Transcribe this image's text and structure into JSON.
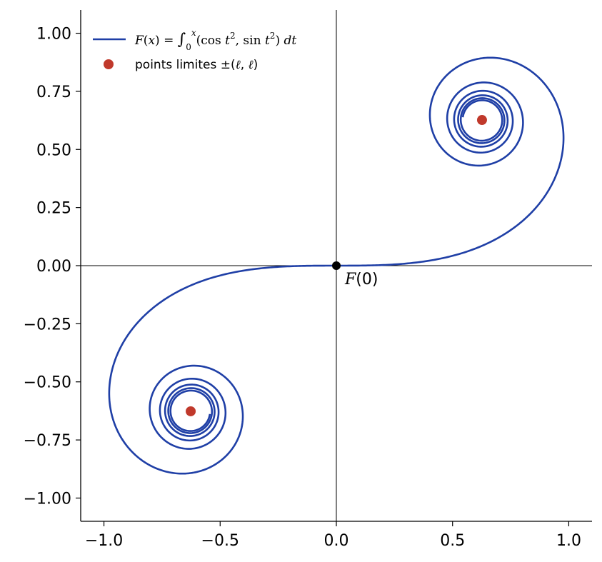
{
  "chart_data": {
    "type": "line",
    "title": "",
    "xlabel": "",
    "ylabel": "",
    "xlim": [
      -1.1,
      1.1
    ],
    "ylim": [
      -1.1,
      1.1
    ],
    "xticks": [
      -1.0,
      -0.5,
      0.0,
      0.5,
      1.0
    ],
    "xtick_labels": [
      "−1.0",
      "−0.5",
      "0.0",
      "0.5",
      "1.0"
    ],
    "yticks": [
      1.0,
      0.75,
      0.5,
      0.25,
      0.0,
      -0.25,
      -0.5,
      -0.75,
      -1.0
    ],
    "ytick_labels": [
      "1.00",
      "0.75",
      "0.50",
      "0.25",
      "0.00",
      "−0.25",
      "−0.50",
      "−0.75",
      "−1.00"
    ],
    "grid": false,
    "legend_position": "top-left",
    "series": [
      {
        "name": "F(x) = ∫₀ˣ (cos t², sin t²) dt",
        "kind": "curve",
        "function": "Fresnel integral F(x) = (∫₀ˣ cos t² dt, ∫₀ˣ sin t² dt)",
        "x_parameter_range": [
          -6,
          6
        ],
        "color": "#1f3fa6"
      },
      {
        "name": "points limites ±(ℓ, ℓ)",
        "kind": "points",
        "points": [
          [
            0.6267,
            0.6267
          ],
          [
            -0.6267,
            -0.6267
          ]
        ],
        "color": "#c0392b"
      }
    ],
    "annotations": [
      {
        "text": "F(0)",
        "point": [
          0.0,
          0.0
        ]
      }
    ],
    "origin_point_color": "#000000"
  }
}
